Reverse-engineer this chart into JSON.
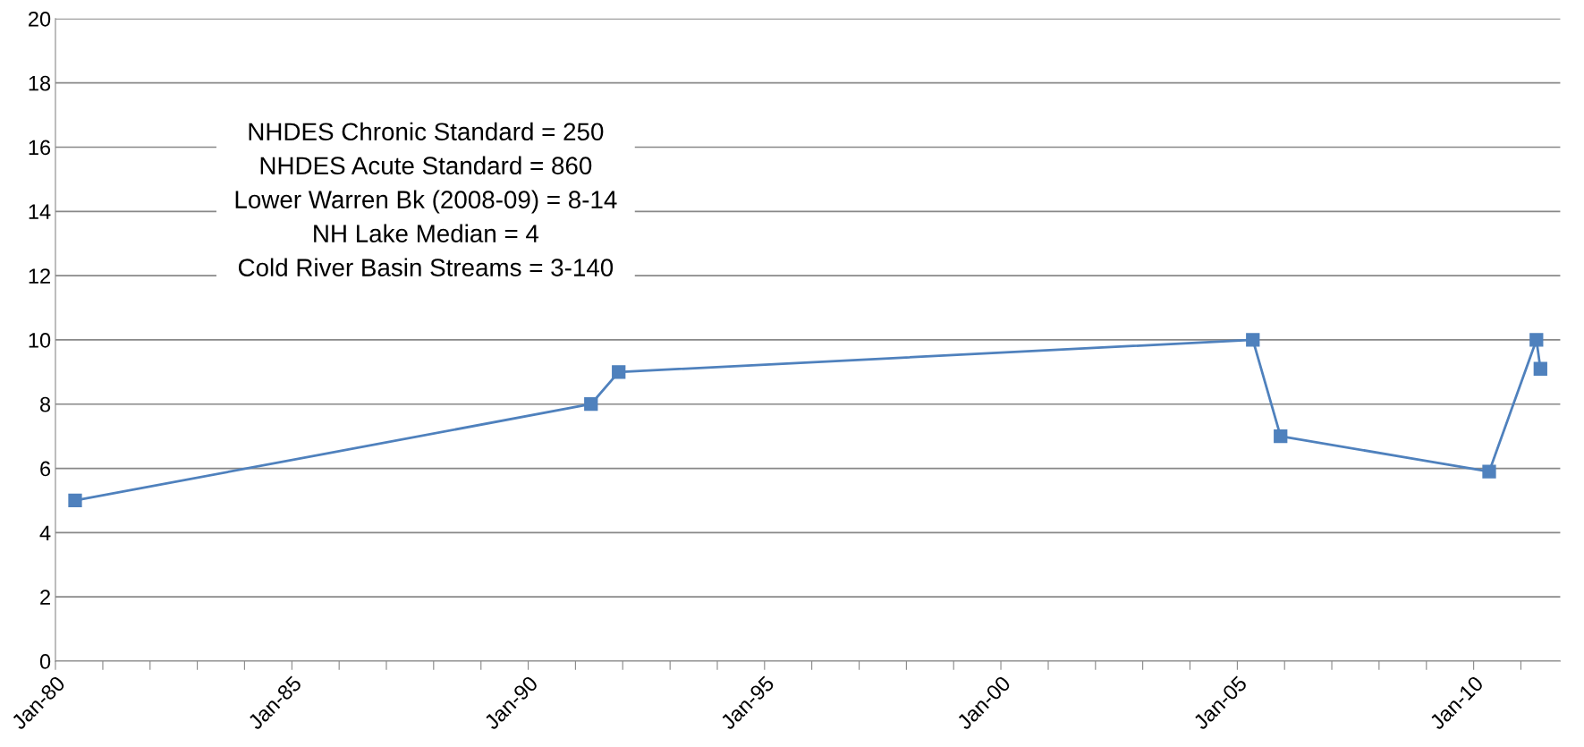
{
  "chart_data": {
    "type": "line",
    "x": [
      "1980-06",
      "1991-05",
      "1991-12",
      "2005-05",
      "2005-12",
      "2010-05",
      "2011-05",
      "2011-06"
    ],
    "series": [
      {
        "color": "#4f81bd",
        "values": [
          5,
          8,
          9,
          10,
          7,
          5.9,
          10,
          9.1
        ]
      }
    ],
    "marker": "square",
    "line_style": "solid",
    "xlim": [
      "1980-01",
      "2011-11"
    ],
    "xticks": [
      {
        "value": "1980-01",
        "label": "Jan-80"
      },
      {
        "value": "1981-01",
        "label": null
      },
      {
        "value": "1982-01",
        "label": null
      },
      {
        "value": "1983-01",
        "label": null
      },
      {
        "value": "1984-01",
        "label": null
      },
      {
        "value": "1985-01",
        "label": "Jan-85"
      },
      {
        "value": "1986-01",
        "label": null
      },
      {
        "value": "1987-01",
        "label": null
      },
      {
        "value": "1988-01",
        "label": null
      },
      {
        "value": "1989-01",
        "label": null
      },
      {
        "value": "1990-01",
        "label": "Jan-90"
      },
      {
        "value": "1991-01",
        "label": null
      },
      {
        "value": "1992-01",
        "label": null
      },
      {
        "value": "1993-01",
        "label": null
      },
      {
        "value": "1994-01",
        "label": null
      },
      {
        "value": "1995-01",
        "label": "Jan-95"
      },
      {
        "value": "1996-01",
        "label": null
      },
      {
        "value": "1997-01",
        "label": null
      },
      {
        "value": "1998-01",
        "label": null
      },
      {
        "value": "1999-01",
        "label": null
      },
      {
        "value": "2000-01",
        "label": "Jan-00"
      },
      {
        "value": "2001-01",
        "label": null
      },
      {
        "value": "2002-01",
        "label": null
      },
      {
        "value": "2003-01",
        "label": null
      },
      {
        "value": "2004-01",
        "label": null
      },
      {
        "value": "2005-01",
        "label": "Jan-05"
      },
      {
        "value": "2006-01",
        "label": null
      },
      {
        "value": "2007-01",
        "label": null
      },
      {
        "value": "2008-01",
        "label": null
      },
      {
        "value": "2009-01",
        "label": null
      },
      {
        "value": "2010-01",
        "label": "Jan-10"
      },
      {
        "value": "2011-01",
        "label": null
      }
    ],
    "ylim": [
      0,
      20
    ],
    "yticks": [
      0,
      2,
      4,
      6,
      8,
      10,
      12,
      14,
      16,
      18,
      20
    ],
    "grid": "y",
    "annotations": [
      "NHDES Chronic Standard = 250",
      "NHDES Acute Standard = 860",
      "Lower Warren Bk (2008-09) = 8-14",
      "NH Lake Median = 4",
      "Cold River Basin Streams = 3-140"
    ]
  }
}
